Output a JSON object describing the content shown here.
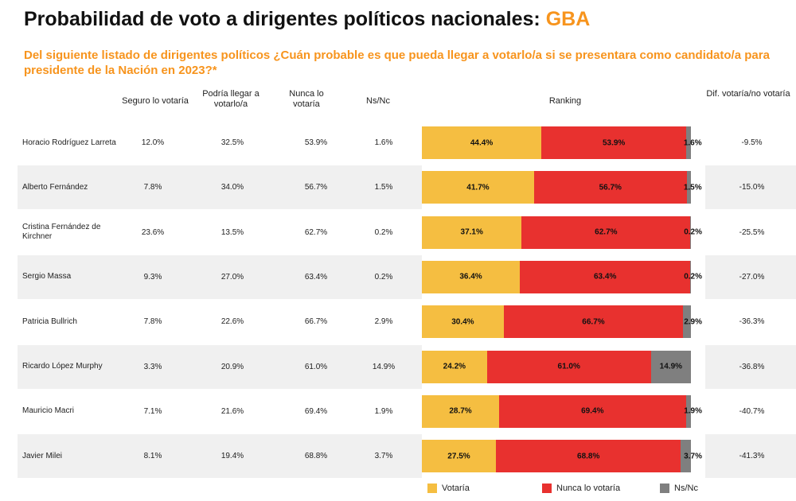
{
  "title_main": "Probabilidad de voto a dirigentes políticos nacionales:",
  "title_accent": "GBA",
  "question": "Del siguiente listado de dirigentes políticos ¿Cuán probable es que pueda llegar a votarlo/a si se presentara como candidato/a para presidente de la Nación en 2023?*",
  "headers": {
    "seguro": "Seguro lo votaría",
    "podria": "Podría llegar a votarlo/a",
    "nunca": "Nunca lo votaría",
    "nsnc": "Ns/Nc",
    "ranking": "Ranking",
    "dif": "Dif. votaría/no votaría"
  },
  "colors": {
    "votaria": "#f5be41",
    "nunca": "#e8312f",
    "nsnc": "#7f7f7f",
    "accent": "#f7941d"
  },
  "legend": {
    "votaria": "Votaría",
    "nunca": "Nunca  lo  votaría",
    "nsnc": "Ns/Nc"
  },
  "chart_data": {
    "type": "bar",
    "orientation": "horizontal",
    "stacked": true,
    "categories": [
      "Horacio Rodríguez Larreta",
      "Alberto Fernández",
      "Cristina Fernández de Kirchner",
      "Sergio Massa",
      "Patricia Bullrich",
      "Ricardo López Murphy",
      "Mauricio Macri",
      "Javier Milei"
    ],
    "series": [
      {
        "name": "Votaría",
        "values": [
          44.4,
          41.7,
          37.1,
          36.4,
          30.4,
          24.2,
          28.7,
          27.5
        ],
        "labels": [
          "44.4%",
          "41.7%",
          "37.1%",
          "36.4%",
          "30.4%",
          "24.2%",
          "28.7%",
          "27.5%"
        ]
      },
      {
        "name": "Nunca  lo  votaría",
        "values": [
          53.9,
          56.7,
          62.7,
          63.4,
          66.7,
          61.0,
          69.4,
          68.8
        ],
        "labels": [
          "53.9%",
          "56.7%",
          "62.7%",
          "63.4%",
          "66.7%",
          "61.0%",
          "69.4%",
          "68.8%"
        ]
      },
      {
        "name": "Ns/Nc",
        "values": [
          1.6,
          1.5,
          0.2,
          0.2,
          2.9,
          14.9,
          1.9,
          3.7
        ],
        "labels": [
          "1.6%",
          "1.5%",
          "0.2%",
          "0.2%",
          "2.9%",
          "14.9%",
          "1.9%",
          "3.7%"
        ]
      }
    ],
    "legend_position": "bottom"
  },
  "rows": [
    {
      "name": "Horacio Rodríguez Larreta",
      "seguro": "12.0%",
      "podria": "32.5%",
      "nunca": "53.9%",
      "nsnc": "1.6%",
      "dif": "-9.5%"
    },
    {
      "name": "Alberto Fernández",
      "seguro": "7.8%",
      "podria": "34.0%",
      "nunca": "56.7%",
      "nsnc": "1.5%",
      "dif": "-15.0%"
    },
    {
      "name": "Cristina Fernández de Kirchner",
      "seguro": "23.6%",
      "podria": "13.5%",
      "nunca": "62.7%",
      "nsnc": "0.2%",
      "dif": "-25.5%"
    },
    {
      "name": "Sergio Massa",
      "seguro": "9.3%",
      "podria": "27.0%",
      "nunca": "63.4%",
      "nsnc": "0.2%",
      "dif": "-27.0%"
    },
    {
      "name": "Patricia Bullrich",
      "seguro": "7.8%",
      "podria": "22.6%",
      "nunca": "66.7%",
      "nsnc": "2.9%",
      "dif": "-36.3%"
    },
    {
      "name": "Ricardo López Murphy",
      "seguro": "3.3%",
      "podria": "20.9%",
      "nunca": "61.0%",
      "nsnc": "14.9%",
      "dif": "-36.8%"
    },
    {
      "name": "Mauricio Macri",
      "seguro": "7.1%",
      "podria": "21.6%",
      "nunca": "69.4%",
      "nsnc": "1.9%",
      "dif": "-40.7%"
    },
    {
      "name": "Javier Milei",
      "seguro": "8.1%",
      "podria": "19.4%",
      "nunca": "68.8%",
      "nsnc": "3.7%",
      "dif": "-41.3%"
    }
  ]
}
